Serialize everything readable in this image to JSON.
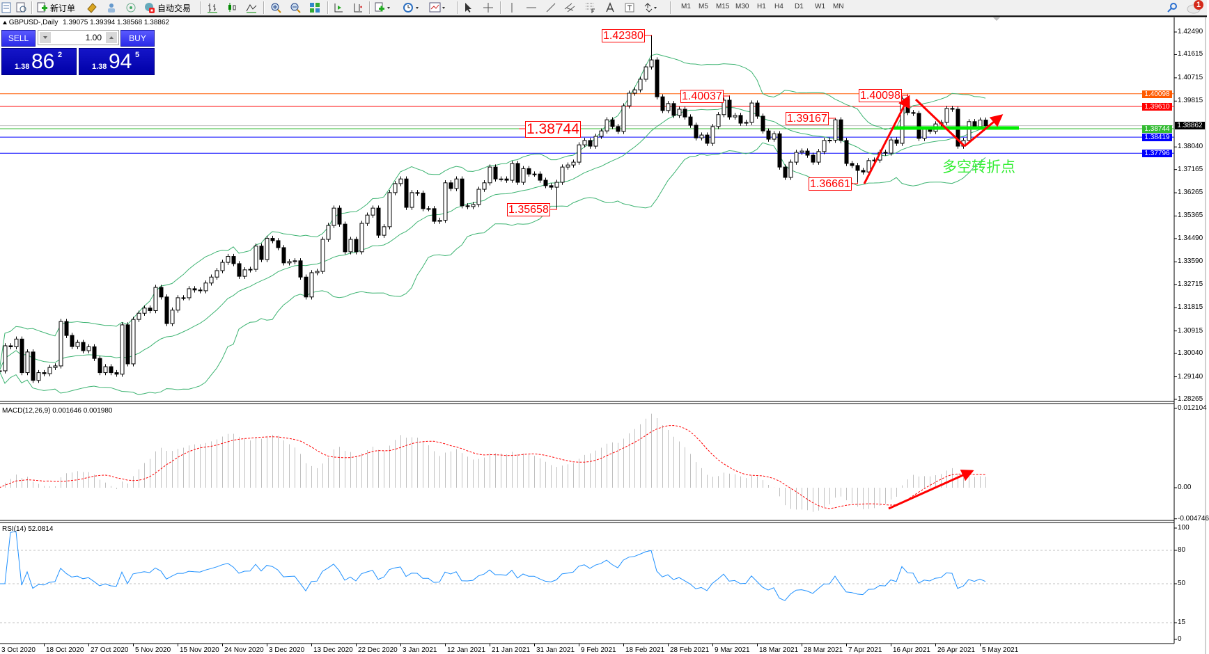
{
  "toolbar": {
    "new_order": "新订单",
    "auto_trading": "自动交易",
    "periods": [
      "M1",
      "M5",
      "M15",
      "M30",
      "H1",
      "H4",
      "D1",
      "W1",
      "MN"
    ],
    "notification_count": "1",
    "icons": [
      "new-chart-icon",
      "profiles-icon",
      "new-order-icon",
      "market-watch-icon",
      "navigator-icon",
      "signals-icon",
      "auto-trading-icon",
      "bar-chart-icon",
      "candlesticks-icon",
      "line-chart-icon",
      "zoom-in-icon",
      "zoom-out-icon",
      "tile-windows-icon",
      "auto-scroll-icon",
      "chart-shift-icon",
      "indicators-icon",
      "periods-icon",
      "templates-icon",
      "cursor-icon",
      "crosshair-icon",
      "vertical-line-icon",
      "horizontal-line-icon",
      "trendline-icon",
      "equidistant-channel-icon",
      "fibonacci-icon",
      "text-icon",
      "text-label-icon",
      "arrows-icon",
      "search-icon",
      "notifications-icon"
    ]
  },
  "chart": {
    "symbol": "GBPUSD-,Daily",
    "ohlc": "1.39075 1.39394 1.38568 1.38862",
    "note_text": "多空转折点",
    "note_color": "#33ee33"
  },
  "trade_panel": {
    "sell_label": "SELL",
    "buy_label": "BUY",
    "volume": "1.00",
    "sell_price": {
      "prefix": "1.38",
      "big": "86",
      "sup": "2"
    },
    "buy_price": {
      "prefix": "1.38",
      "big": "94",
      "sup": "5"
    }
  },
  "chart_data": {
    "type": "candlestick",
    "symbol": "GBPUSD",
    "timeframe": "Daily",
    "closes": [
      1.2937,
      1.3034,
      1.303,
      1.306,
      1.293,
      1.301,
      1.29,
      1.293,
      1.2926,
      1.295,
      1.2956,
      1.3128,
      1.3074,
      1.3031,
      1.3047,
      1.3015,
      1.303,
      1.2985,
      1.293,
      1.2953,
      1.293,
      1.2924,
      1.3115,
      1.2964,
      1.3136,
      1.316,
      1.318,
      1.317,
      1.326,
      1.3223,
      1.312,
      1.3172,
      1.322,
      1.322,
      1.3255,
      1.325,
      1.3247,
      1.3277,
      1.33,
      1.3325,
      1.3357,
      1.338,
      1.3352,
      1.3303,
      1.3328,
      1.333,
      1.342,
      1.3368,
      1.345,
      1.3441,
      1.3414,
      1.3355,
      1.336,
      1.3363,
      1.33,
      1.3223,
      1.3317,
      1.3322,
      1.3446,
      1.35,
      1.3567,
      1.3505,
      1.3398,
      1.3446,
      1.3398,
      1.3508,
      1.354,
      1.3567,
      1.3462,
      1.3495,
      1.3627,
      1.3662,
      1.368,
      1.357,
      1.3627,
      1.3625,
      1.3565,
      1.3565,
      1.3516,
      1.352,
      1.3665,
      1.3643,
      1.368,
      1.3576,
      1.3573,
      1.3581,
      1.364,
      1.3665,
      1.3726,
      1.368,
      1.368,
      1.3675,
      1.374,
      1.3667,
      1.372,
      1.3699,
      1.3699,
      1.3675,
      1.3654,
      1.3648,
      1.3667,
      1.3726,
      1.3734,
      1.3745,
      1.3812,
      1.3829,
      1.3807,
      1.3845,
      1.3866,
      1.3909,
      1.3883,
      1.3864,
      1.3963,
      1.4012,
      1.4025,
      1.4066,
      1.4114,
      1.4141,
      1.3998,
      1.3945,
      1.3972,
      1.3926,
      1.395,
      1.392,
      1.3888,
      1.3839,
      1.385,
      1.3818,
      1.3883,
      1.3929,
      1.3985,
      1.392,
      1.3926,
      1.3896,
      1.3899,
      1.3974,
      1.3923,
      1.3866,
      1.3834,
      1.3855,
      1.3726,
      1.3686,
      1.3745,
      1.3783,
      1.3788,
      1.3772,
      1.3745,
      1.3786,
      1.3829,
      1.383,
      1.3909,
      1.3829,
      1.374,
      1.3732,
      1.3713,
      1.3707,
      1.3751,
      1.3753,
      1.3783,
      1.378,
      1.3831,
      1.3818,
      1.399,
      1.3937,
      1.3934,
      1.3837,
      1.3872,
      1.3864,
      1.3893,
      1.3899,
      1.3953,
      1.395,
      1.3807,
      1.3829,
      1.3902,
      1.3883,
      1.3908,
      1.38862
    ],
    "x_tick_labels": [
      "3 Oct 2020",
      "18 Oct 2020",
      "27 Oct 2020",
      "5 Nov 2020",
      "15 Nov 2020",
      "24 Nov 2020",
      "3 Dec 2020",
      "13 Dec 2020",
      "22 Dec 2020",
      "3 Jan 2021",
      "12 Jan 2021",
      "21 Jan 2021",
      "31 Jan 2021",
      "9 Feb 2021",
      "18 Feb 2021",
      "28 Feb 2021",
      "9 Mar 2021",
      "18 Mar 2021",
      "28 Mar 2021",
      "7 Apr 2021",
      "16 Apr 2021",
      "26 Apr 2021",
      "5 May 2021"
    ],
    "y_tick_labels": [
      "1.42490",
      "1.41615",
      "1.40715",
      "1.39815",
      "1.38040",
      "1.37165",
      "1.36265",
      "1.35365",
      "1.34490",
      "1.33590",
      "1.32715",
      "1.31815",
      "1.30915",
      "1.30040",
      "1.29140",
      "1.28265"
    ],
    "ylim": [
      1.28265,
      1.4249
    ],
    "grid": false,
    "bid_price": "1.38862",
    "bid_line_color": "#c0c0c0",
    "horizontal_lines": [
      {
        "price": "1.40098",
        "color": "#ff5a00"
      },
      {
        "price": "1.39610",
        "color": "#ff0000"
      },
      {
        "price": "1.38744",
        "color": "#33bb33"
      },
      {
        "price": "1.38419",
        "color": "#0000ff"
      },
      {
        "price": "1.37796",
        "color": "#0000ff"
      }
    ],
    "annotations": [
      {
        "text": "1.42380",
        "price": 1.4238,
        "kind": "high"
      },
      {
        "text": "1.40037",
        "price": 1.40037,
        "kind": "high"
      },
      {
        "text": "1.39167",
        "price": 1.39167,
        "kind": "high"
      },
      {
        "text": "1.36661",
        "price": 1.36661,
        "kind": "low"
      },
      {
        "text": "1.40098",
        "price": 1.40098,
        "kind": "high"
      },
      {
        "text": "1.35658",
        "price": 1.35658,
        "kind": "low"
      },
      {
        "text": "1.38744",
        "price": 1.38744,
        "kind": "line"
      }
    ],
    "overlay": {
      "name": "Bollinger Bands",
      "period": 20,
      "deviation": 2,
      "color": "#3cb371"
    },
    "macd": {
      "label": "MACD(12,26,9) 0.001646 0.001980",
      "params": [
        12,
        26,
        9
      ],
      "y_tick_labels": [
        "0.012104",
        "0.00",
        "-0.004746"
      ],
      "ylim": [
        -0.004746,
        0.012104
      ],
      "histogram_color": "#c0c0c0",
      "signal_color": "#ff0000"
    },
    "rsi": {
      "label": "RSI(14) 52.0814",
      "period": 14,
      "y_tick_labels": [
        "100",
        "80",
        "50",
        "15",
        "0"
      ],
      "levels": [
        80,
        50,
        15
      ],
      "ylim": [
        0,
        100
      ],
      "color": "#1e90ff"
    },
    "arrow_color": "#ff0000",
    "support_line_color": "#00ee00"
  }
}
